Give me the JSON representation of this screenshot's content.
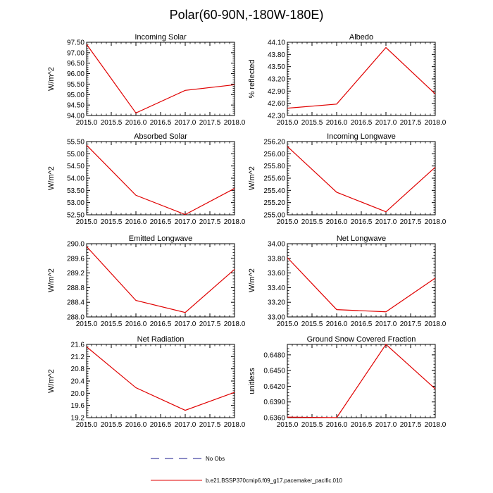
{
  "figure": {
    "title": "Polar(60-90N,-180W-180E)"
  },
  "legend": {
    "entries": [
      {
        "label": "No Obs",
        "color": "#1a1a8c",
        "dash": true
      },
      {
        "label": "b.e21.BSSP370cmip6.f09_g17.pacemaker_pacific.010",
        "color": "#e00000",
        "dash": false
      }
    ]
  },
  "chart_data": [
    {
      "type": "line",
      "title": "Incoming Solar",
      "ylabel": "W/m^2",
      "xlabel": "",
      "x": [
        2015,
        2016,
        2017,
        2018
      ],
      "xlim": [
        2015,
        2018
      ],
      "xticks": [
        "2015.0",
        "2015.5",
        "2016.0",
        "2016.5",
        "2017.0",
        "2017.5",
        "2018.0"
      ],
      "ylim": [
        94.0,
        97.5
      ],
      "yticks": [
        "94.00",
        "94.50",
        "95.00",
        "95.50",
        "96.00",
        "96.50",
        "97.00",
        "97.50"
      ],
      "series": [
        {
          "name": "b.e21.BSSP370cmip6.f09_g17.pacemaker_pacific.010",
          "color": "#e00000",
          "values": [
            97.4,
            94.12,
            95.2,
            95.47
          ]
        }
      ]
    },
    {
      "type": "line",
      "title": "Albedo",
      "ylabel": "% reflected",
      "xlabel": "",
      "x": [
        2015,
        2016,
        2017,
        2018
      ],
      "xlim": [
        2015,
        2018
      ],
      "xticks": [
        "2015.0",
        "2015.5",
        "2016.0",
        "2016.5",
        "2017.0",
        "2017.5",
        "2018.0"
      ],
      "ylim": [
        42.3,
        44.1
      ],
      "yticks": [
        "42.30",
        "42.60",
        "42.90",
        "43.20",
        "43.50",
        "43.80",
        "44.10"
      ],
      "series": [
        {
          "name": "b.e21.BSSP370cmip6.f09_g17.pacemaker_pacific.010",
          "color": "#e00000",
          "values": [
            42.48,
            42.58,
            43.97,
            42.83
          ]
        }
      ]
    },
    {
      "type": "line",
      "title": "Absorbed Solar",
      "ylabel": "W/m^2",
      "xlabel": "",
      "x": [
        2015,
        2016,
        2017,
        2018
      ],
      "xlim": [
        2015,
        2018
      ],
      "xticks": [
        "2015.0",
        "2015.5",
        "2016.0",
        "2016.5",
        "2017.0",
        "2017.5",
        "2018.0"
      ],
      "ylim": [
        52.5,
        55.5
      ],
      "yticks": [
        "52.50",
        "53.00",
        "53.50",
        "54.00",
        "54.50",
        "55.00",
        "55.50"
      ],
      "series": [
        {
          "name": "b.e21.BSSP370cmip6.f09_g17.pacemaker_pacific.010",
          "color": "#e00000",
          "values": [
            55.35,
            53.3,
            52.51,
            53.58
          ]
        }
      ]
    },
    {
      "type": "line",
      "title": "Incoming Longwave",
      "ylabel": "W/m^2",
      "xlabel": "",
      "x": [
        2015,
        2016,
        2017,
        2018
      ],
      "xlim": [
        2015,
        2018
      ],
      "xticks": [
        "2015.0",
        "2015.5",
        "2016.0",
        "2016.5",
        "2017.0",
        "2017.5",
        "2018.0"
      ],
      "ylim": [
        255.0,
        256.2
      ],
      "yticks": [
        "255.00",
        "255.20",
        "255.40",
        "255.60",
        "255.80",
        "256.00",
        "256.20"
      ],
      "series": [
        {
          "name": "b.e21.BSSP370cmip6.f09_g17.pacemaker_pacific.010",
          "color": "#e00000",
          "values": [
            256.12,
            255.37,
            255.05,
            255.78
          ]
        }
      ]
    },
    {
      "type": "line",
      "title": "Emitted Longwave",
      "ylabel": "W/m^2",
      "xlabel": "",
      "x": [
        2015,
        2016,
        2017,
        2018
      ],
      "xlim": [
        2015,
        2018
      ],
      "xticks": [
        "2015.0",
        "2015.5",
        "2016.0",
        "2016.5",
        "2017.0",
        "2017.5",
        "2018.0"
      ],
      "ylim": [
        288.0,
        290.0
      ],
      "yticks": [
        "288.0",
        "288.4",
        "288.8",
        "289.2",
        "289.6",
        "290.0"
      ],
      "series": [
        {
          "name": "b.e21.BSSP370cmip6.f09_g17.pacemaker_pacific.010",
          "color": "#e00000",
          "values": [
            289.92,
            288.45,
            288.12,
            289.3
          ]
        }
      ]
    },
    {
      "type": "line",
      "title": "Net Longwave",
      "ylabel": "W/m^2",
      "xlabel": "",
      "x": [
        2015,
        2016,
        2017,
        2018
      ],
      "xlim": [
        2015,
        2018
      ],
      "xticks": [
        "2015.0",
        "2015.5",
        "2016.0",
        "2016.5",
        "2017.0",
        "2017.5",
        "2018.0"
      ],
      "ylim": [
        33.0,
        34.0
      ],
      "yticks": [
        "33.00",
        "33.20",
        "33.40",
        "33.60",
        "33.80",
        "34.00"
      ],
      "series": [
        {
          "name": "b.e21.BSSP370cmip6.f09_g17.pacemaker_pacific.010",
          "color": "#e00000",
          "values": [
            33.81,
            33.1,
            33.07,
            33.53
          ]
        }
      ]
    },
    {
      "type": "line",
      "title": "Net Radiation",
      "ylabel": "W/m^2",
      "xlabel": "",
      "x": [
        2015,
        2016,
        2017,
        2018
      ],
      "xlim": [
        2015,
        2018
      ],
      "xticks": [
        "2015.0",
        "2015.5",
        "2016.0",
        "2016.5",
        "2017.0",
        "2017.5",
        "2018.0"
      ],
      "ylim": [
        19.2,
        21.6
      ],
      "yticks": [
        "19.2",
        "19.6",
        "20.0",
        "20.4",
        "20.8",
        "21.2",
        "21.6"
      ],
      "series": [
        {
          "name": "b.e21.BSSP370cmip6.f09_g17.pacemaker_pacific.010",
          "color": "#e00000",
          "values": [
            21.52,
            20.18,
            19.44,
            20.03
          ]
        }
      ]
    },
    {
      "type": "line",
      "title": "Ground Snow Covered Fraction",
      "ylabel": "unitless",
      "xlabel": "",
      "x": [
        2015,
        2016,
        2017,
        2018
      ],
      "xlim": [
        2015,
        2018
      ],
      "xticks": [
        "2015.0",
        "2015.5",
        "2016.0",
        "2016.5",
        "2017.0",
        "2017.5",
        "2018.0"
      ],
      "ylim": [
        0.636,
        0.65
      ],
      "yticks": [
        "0.6360",
        "0.6390",
        "0.6420",
        "0.6450",
        "0.6480"
      ],
      "series": [
        {
          "name": "b.e21.BSSP370cmip6.f09_g17.pacemaker_pacific.010",
          "color": "#e00000",
          "values": [
            0.6361,
            0.636,
            0.65,
            0.6415
          ]
        }
      ]
    }
  ]
}
